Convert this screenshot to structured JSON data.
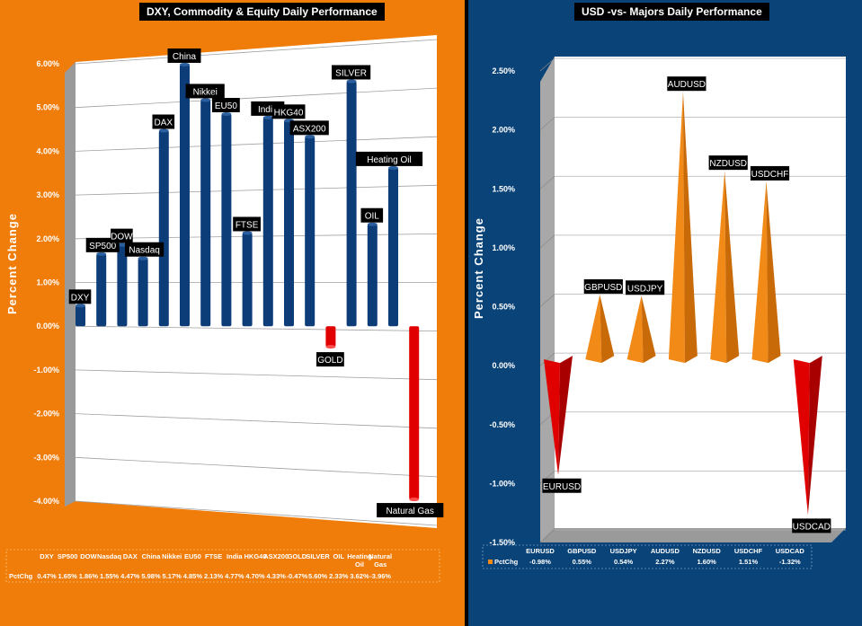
{
  "chart_data": [
    {
      "type": "bar",
      "title": "DXY, Commodity & Equity Daily Performance",
      "ylabel": "Percent Change",
      "ylim": [
        -4,
        6
      ],
      "yticks": [
        "6.00%",
        "5.00%",
        "4.00%",
        "3.00%",
        "2.00%",
        "1.00%",
        "0.00%",
        "-1.00%",
        "-2.00%",
        "-3.00%",
        "-4.00%"
      ],
      "categories": [
        "DXY",
        "SP500",
        "DOW",
        "Nasdaq",
        "DAX",
        "China",
        "Nikkei",
        "EU50",
        "FTSE",
        "India",
        "HKG40",
        "ASX200",
        "GOLD",
        "SILVER",
        "OIL",
        "Heating Oil",
        "Natural Gas"
      ],
      "series": [
        {
          "name": "PctChg",
          "values": [
            0.47,
            1.65,
            1.86,
            1.55,
            4.47,
            5.98,
            5.17,
            4.85,
            2.13,
            4.77,
            4.7,
            4.33,
            -0.47,
            5.6,
            2.33,
            3.62,
            -3.96
          ]
        }
      ],
      "table_row_label": "PctChg",
      "table_values": [
        "0.47%",
        "1.65%",
        "1.86%",
        "1.55%",
        "4.47%",
        "5.98%",
        "5.17%",
        "4.85%",
        "2.13%",
        "4.77%",
        "4.70%",
        "4.33%",
        "-0.47%",
        "5.60%",
        "2.33%",
        "3.62%",
        "-3.96%"
      ],
      "colors": {
        "positive": "#0C3D78",
        "negative": "#E00000",
        "background": "#F07D0A"
      }
    },
    {
      "type": "bar",
      "title": "USD -vs- Majors Daily Performance",
      "ylabel": "Percent Change",
      "ylim": [
        -1.5,
        2.5
      ],
      "yticks": [
        "2.50%",
        "2.00%",
        "1.50%",
        "1.00%",
        "0.50%",
        "0.00%",
        "-0.50%",
        "-1.00%",
        "-1.50%"
      ],
      "categories": [
        "EURUSD",
        "GBPUSD",
        "USDJPY",
        "AUDUSD",
        "NZDUSD",
        "USDCHF",
        "USDCAD"
      ],
      "series": [
        {
          "name": "PctChg",
          "values": [
            -0.98,
            0.55,
            0.54,
            2.27,
            1.6,
            1.51,
            -1.32
          ]
        }
      ],
      "table_row_label": "PctChg",
      "table_values": [
        "-0.98%",
        "0.55%",
        "0.54%",
        "2.27%",
        "1.60%",
        "1.51%",
        "-1.32%"
      ],
      "colors": {
        "positive": "#F28A18",
        "negative": "#E00000",
        "background": "#0A4378"
      }
    }
  ]
}
